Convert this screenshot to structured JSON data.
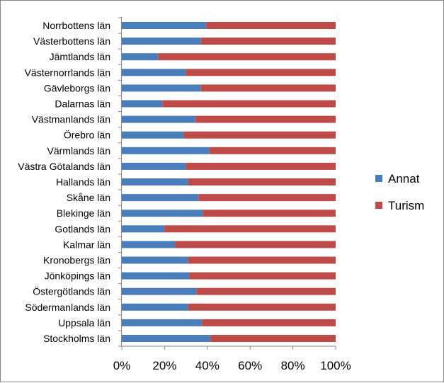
{
  "chart_data": {
    "type": "bar",
    "orientation": "horizontal",
    "stacked": "percent",
    "categories": [
      "Norrbottens län",
      "Västerbottens län",
      "Jämtlands län",
      "Västernorrlands län",
      "Gävleborgs län",
      "Dalarnas län",
      "Västmanlands län",
      "Örebro län",
      "Värmlands län",
      "Västra Götalands län",
      "Hallands län",
      "Skåne län",
      "Blekinge län",
      "Gotlands län",
      "Kalmar län",
      "Kronobergs län",
      "Jönköpings län",
      "Östergötlands län",
      "Södermanlands län",
      "Uppsala län",
      "Stockholms län"
    ],
    "series": [
      {
        "name": "Annat",
        "color": "#4a7ebb",
        "values": [
          39.5,
          37,
          17,
          30,
          37,
          19,
          34.5,
          29,
          41,
          30,
          31,
          36,
          38,
          20,
          25,
          31,
          31.5,
          35,
          31,
          37.5,
          41.5
        ]
      },
      {
        "name": "Turism",
        "color": "#be4b48",
        "values": [
          60.5,
          63,
          83,
          70,
          63,
          81,
          65.5,
          71,
          59,
          70,
          69,
          64,
          62,
          80,
          75,
          69,
          68.5,
          65,
          69,
          62.5,
          58.5
        ]
      }
    ],
    "xlim": [
      0,
      100
    ],
    "xticks": [
      "0%",
      "20%",
      "40%",
      "60%",
      "80%",
      "100%"
    ],
    "grid": false,
    "legend_position": "right",
    "title": "",
    "xlabel": "",
    "ylabel": ""
  }
}
